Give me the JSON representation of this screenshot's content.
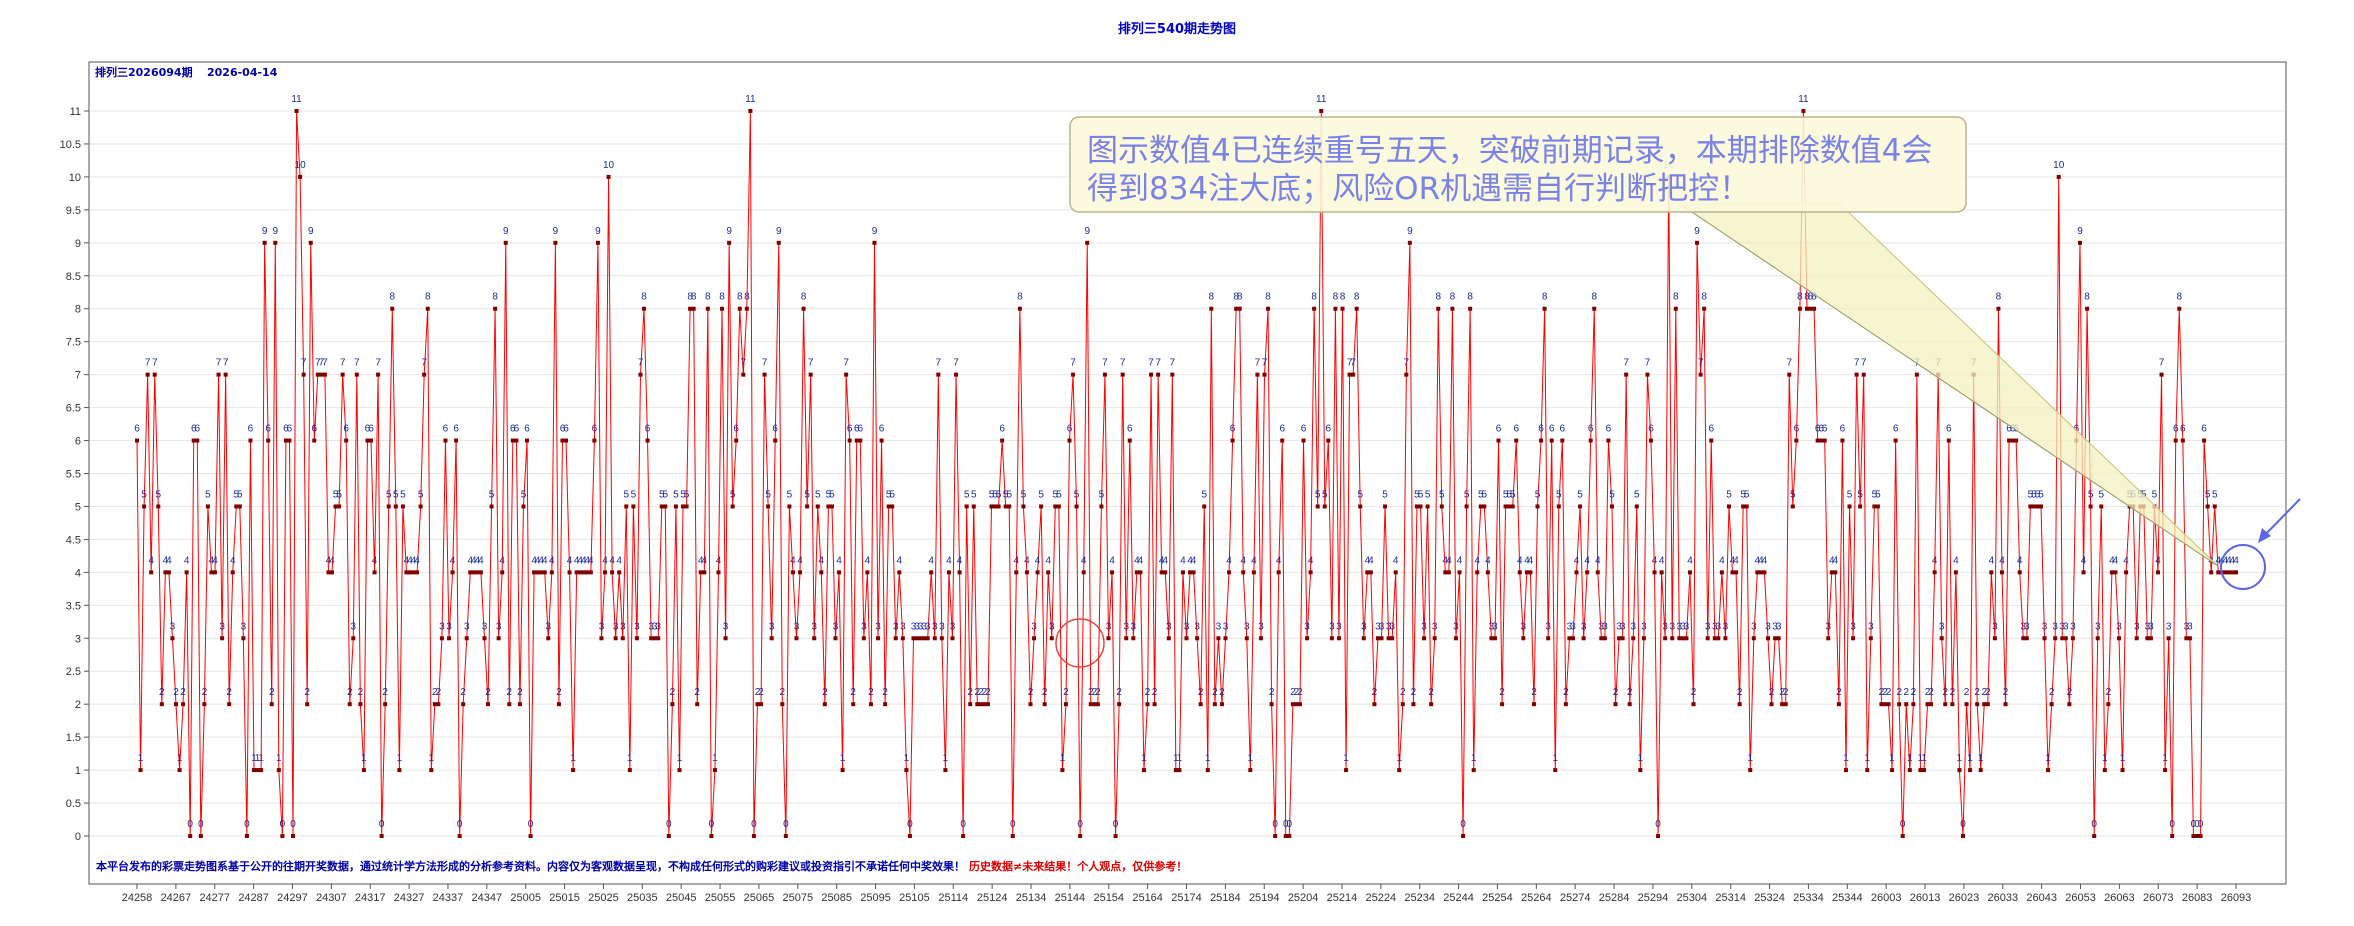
{
  "chart_data": {
    "type": "line",
    "title": "排列三540期走势图",
    "header_issue": "排列三2026094期",
    "header_date": "2026-04-14",
    "ylim": [
      0,
      11
    ],
    "y_ticks": [
      "0",
      "0.5",
      "1",
      "1.5",
      "2",
      "2.5",
      "3",
      "3.5",
      "4",
      "4.5",
      "5",
      "5.5",
      "6",
      "6.5",
      "7",
      "7.5",
      "8",
      "8.5",
      "9",
      "9.5",
      "10",
      "10.5",
      "11"
    ],
    "x_ticks": [
      "24258",
      "24267",
      "24277",
      "24287",
      "24297",
      "24307",
      "24317",
      "24327",
      "24337",
      "24347",
      "25005",
      "25015",
      "25025",
      "25035",
      "25045",
      "25055",
      "25065",
      "25075",
      "25085",
      "25095",
      "25105",
      "25114",
      "25124",
      "25134",
      "25144",
      "25154",
      "25164",
      "25174",
      "25184",
      "25194",
      "25204",
      "25214",
      "25224",
      "25234",
      "25244",
      "25254",
      "25264",
      "25274",
      "25284",
      "25294",
      "25304",
      "25314",
      "25324",
      "25334",
      "25344",
      "26003",
      "26013",
      "26023",
      "26033",
      "26043",
      "26053",
      "26063",
      "26073",
      "26083",
      "26093"
    ],
    "grid": true,
    "line_color": "#ff0000",
    "marker_color": "#800000",
    "label_color": "#1a2a99",
    "values": [
      6,
      1,
      5,
      7,
      4,
      7,
      5,
      2,
      4,
      4,
      3,
      2,
      1,
      2,
      4,
      0,
      6,
      6,
      0,
      2,
      5,
      4,
      4,
      7,
      3,
      7,
      2,
      4,
      5,
      5,
      3,
      0,
      6,
      1,
      1,
      1,
      9,
      6,
      2,
      9,
      1,
      0,
      6,
      6,
      0,
      11,
      10,
      7,
      2,
      9,
      6,
      7,
      7,
      7,
      4,
      4,
      5,
      5,
      7,
      6,
      2,
      3,
      7,
      2,
      1,
      6,
      6,
      4,
      7,
      0,
      2,
      5,
      8,
      5,
      1,
      5,
      4,
      4,
      4,
      4,
      5,
      7,
      8,
      1,
      2,
      2,
      3,
      6,
      3,
      4,
      6,
      0,
      2,
      3,
      4,
      4,
      4,
      4,
      3,
      2,
      5,
      8,
      3,
      4,
      9,
      2,
      6,
      6,
      2,
      5,
      6,
      0,
      4,
      4,
      4,
      4,
      3,
      4,
      9,
      2,
      6,
      6,
      4,
      1,
      4,
      4,
      4,
      4,
      4,
      6,
      9,
      3,
      4,
      10,
      4,
      3,
      4,
      3,
      5,
      1,
      5,
      3,
      7,
      8,
      6,
      3,
      3,
      3,
      5,
      5,
      0,
      2,
      5,
      1,
      5,
      5,
      8,
      8,
      2,
      4,
      4,
      8,
      0,
      1,
      4,
      8,
      3,
      9,
      5,
      6,
      8,
      7,
      8,
      11,
      0,
      2,
      2,
      7,
      5,
      3,
      6,
      9,
      2,
      0,
      5,
      4,
      3,
      4,
      8,
      5,
      7,
      3,
      5,
      4,
      2,
      5,
      5,
      3,
      4,
      1,
      7,
      6,
      2,
      6,
      6,
      3,
      4,
      2,
      9,
      3,
      6,
      2,
      5,
      5,
      3,
      4,
      3,
      1,
      0,
      3,
      3,
      3,
      3,
      3,
      4,
      3,
      7,
      3,
      1,
      4,
      3,
      7,
      4,
      0,
      5,
      2,
      5,
      2,
      2,
      2,
      2,
      5,
      5,
      5,
      6,
      5,
      5,
      0,
      4,
      8,
      5,
      4,
      2,
      3,
      4,
      5,
      2,
      4,
      3,
      5,
      5,
      1,
      2,
      6,
      7,
      5,
      0,
      4,
      9,
      2,
      2,
      2,
      5,
      7,
      3,
      4,
      0,
      2,
      7,
      3,
      6,
      3,
      4,
      4,
      1,
      2,
      7,
      2,
      7,
      4,
      4,
      3,
      7,
      1,
      1,
      4,
      3,
      4,
      4,
      3,
      2,
      5,
      1,
      8,
      2,
      3,
      2,
      3,
      4,
      6,
      8,
      8,
      4,
      3,
      1,
      4,
      7,
      3,
      7,
      8,
      2,
      0,
      4,
      6,
      0,
      0,
      2,
      2,
      2,
      6,
      3,
      4,
      8,
      5,
      11,
      5,
      6,
      3,
      8,
      3,
      8,
      1,
      7,
      7,
      8,
      5,
      3,
      4,
      4,
      2,
      3,
      3,
      5,
      3,
      3,
      4,
      1,
      2,
      7,
      9,
      2,
      5,
      5,
      3,
      5,
      2,
      3,
      8,
      5,
      4,
      4,
      8,
      3,
      4,
      0,
      5,
      8,
      1,
      4,
      5,
      5,
      4,
      3,
      3,
      6,
      2,
      5,
      5,
      5,
      6,
      4,
      3,
      4,
      4,
      2,
      5,
      6,
      8,
      3,
      6,
      1,
      5,
      6,
      2,
      3,
      3,
      4,
      5,
      3,
      4,
      6,
      8,
      4,
      3,
      3,
      6,
      5,
      2,
      3,
      3,
      7,
      2,
      3,
      5,
      1,
      3,
      7,
      6,
      4,
      0,
      4,
      3,
      10,
      3,
      8,
      3,
      3,
      3,
      4,
      2,
      9,
      7,
      8,
      3,
      6,
      3,
      3,
      4,
      3,
      5,
      4,
      4,
      2,
      5,
      5,
      1,
      3,
      4,
      4,
      4,
      3,
      2,
      3,
      3,
      2,
      2,
      7,
      5,
      6,
      8,
      11,
      8,
      8,
      8,
      6,
      6,
      6,
      3,
      4,
      4,
      2,
      6,
      1,
      5,
      3,
      7,
      5,
      7,
      1,
      3,
      5,
      5,
      2,
      2,
      2,
      1,
      6,
      2,
      0,
      2,
      1,
      2,
      7,
      1,
      1,
      2,
      2,
      4,
      7,
      3,
      2,
      6,
      2,
      4,
      1,
      0,
      2,
      1,
      7,
      2,
      1,
      2,
      2,
      4,
      3,
      8,
      4,
      2,
      6,
      6,
      6,
      4,
      3,
      3,
      5,
      5,
      5,
      5,
      3,
      1,
      2,
      3,
      10,
      3,
      3,
      2,
      3,
      6,
      9,
      4,
      8,
      5,
      0,
      3,
      5,
      1,
      2,
      4,
      4,
      3,
      1,
      4,
      5,
      5,
      3,
      5,
      5,
      3,
      3,
      5,
      4,
      7,
      1,
      3,
      0,
      6,
      8,
      6,
      3,
      3,
      0,
      0,
      0,
      6,
      5,
      4,
      5,
      4,
      4,
      4,
      4,
      4,
      4
    ]
  },
  "note_part1": "本平台发布的彩票走势图系基于公开的往期开奖数据，通过统计学方法形成的分析参考资料。内容仅为客观数据呈现，不构成任何形式的购彩建议或投资指引不承诺任何中奖效果！",
  "note_part2": "历史数据≠未来结果！个人观点，仅供参考！",
  "callout_line1": "图示数值4已连续重号五天，突破前期记录，本期排除数值4会",
  "callout_line2": "得到834注大底；风险OR机遇需自行判断把控！"
}
